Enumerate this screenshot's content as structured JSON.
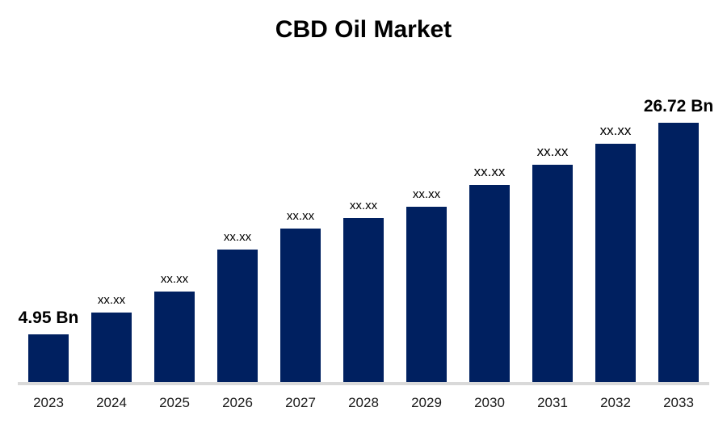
{
  "title": "CBD Oil Market",
  "colors": {
    "bar": "#002060",
    "axis_line": "#d9d9d9",
    "title_text": "#000000",
    "label_text": "#000000"
  },
  "chart_data": {
    "type": "bar",
    "title": "CBD Oil Market",
    "categories": [
      "2023",
      "2024",
      "2025",
      "2026",
      "2027",
      "2028",
      "2029",
      "2030",
      "2031",
      "2032",
      "2033"
    ],
    "values": [
      4.95,
      7.2,
      9.3,
      13.7,
      15.8,
      16.9,
      18.1,
      20.3,
      22.4,
      24.6,
      26.72
    ],
    "bar_labels": [
      "4.95 Bn",
      "xx.xx",
      "xx.xx",
      "xx.xx",
      "xx.xx",
      "xx.xx",
      "xx.xx",
      "xx.xx",
      "xx.xx",
      "xx.xx",
      "26.72 Bn"
    ],
    "unit": "Bn",
    "xlabel": "",
    "ylabel": "",
    "ylim": [
      0,
      30
    ],
    "grid": false,
    "legend": false
  }
}
